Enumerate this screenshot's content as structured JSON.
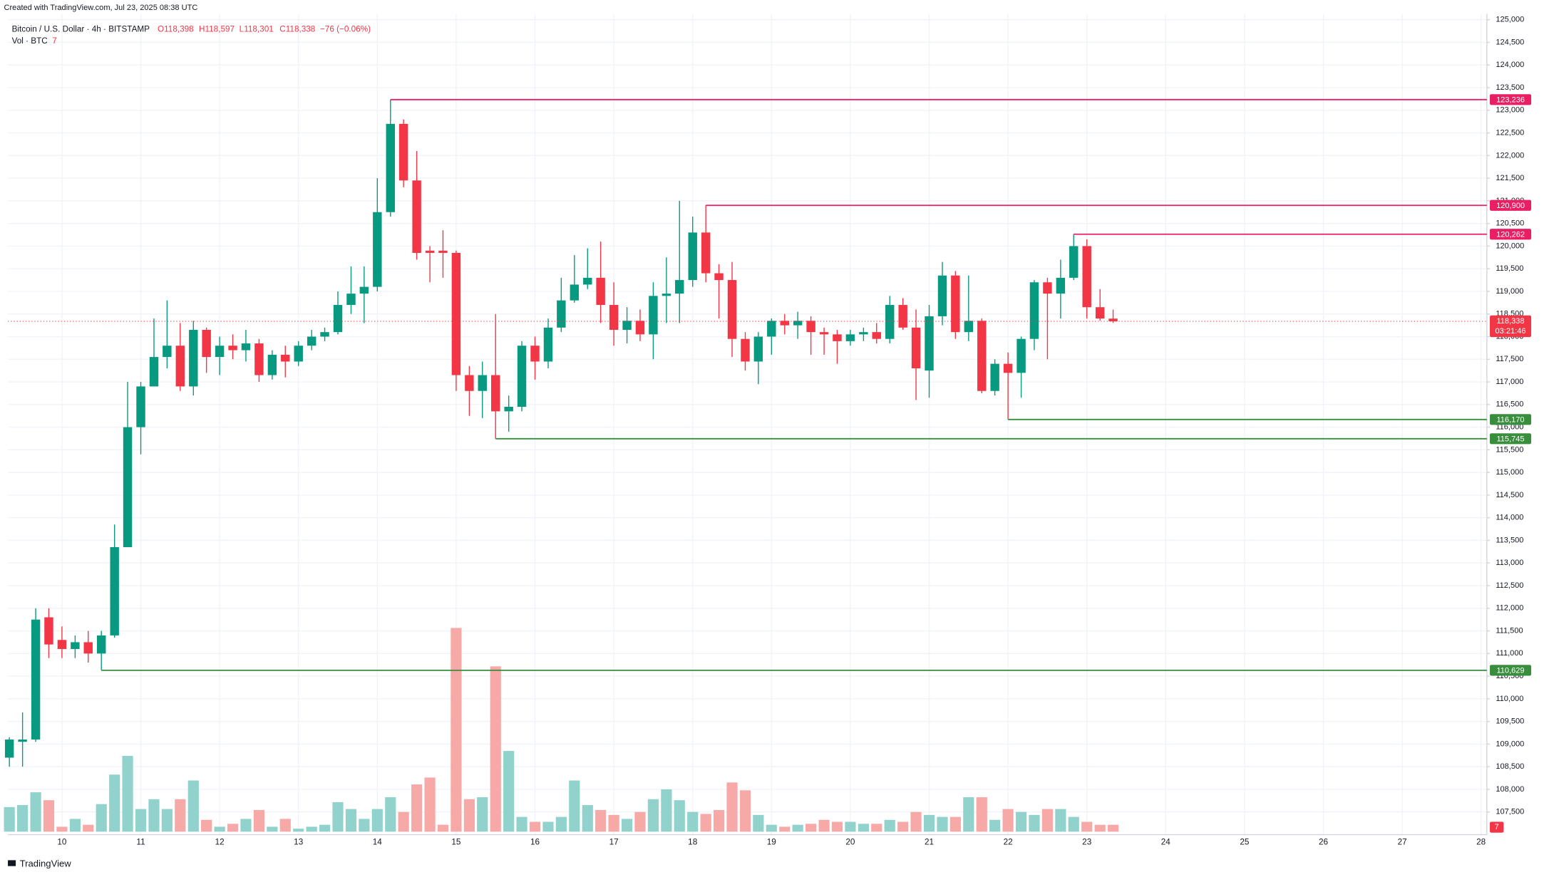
{
  "header": {
    "created": "Created with TradingView.com, Jul 23, 2025 08:38 UTC",
    "symbol": "Bitcoin / U.S. Dollar · 4h · BITSTAMP",
    "open": "O118,398",
    "high": "H118,597",
    "low": "L118,301",
    "close": "C118,338",
    "change": "−76 (−0.06%)",
    "volume_title": "Vol · BTC",
    "logo": "TradingView"
  },
  "chart_data": {
    "type": "candlestick",
    "title": "Bitcoin / U.S. Dollar · 4h · BITSTAMP",
    "x": [
      9.333,
      9.5,
      9.667,
      9.833,
      10,
      10.167,
      10.333,
      10.5,
      10.667,
      10.833,
      11,
      11.167,
      11.333,
      11.5,
      11.667,
      11.833,
      12,
      12.167,
      12.333,
      12.5,
      12.667,
      12.833,
      13,
      13.167,
      13.333,
      13.5,
      13.667,
      13.833,
      14,
      14.167,
      14.333,
      14.5,
      14.667,
      14.833,
      15,
      15.167,
      15.333,
      15.5,
      15.667,
      15.833,
      16,
      16.167,
      16.333,
      16.5,
      16.667,
      16.833,
      17,
      17.167,
      17.333,
      17.5,
      17.667,
      17.833,
      18,
      18.167,
      18.333,
      18.5,
      18.667,
      18.833,
      19,
      19.167,
      19.333,
      19.5,
      19.667,
      19.833,
      20,
      20.167,
      20.333,
      20.5,
      20.667,
      20.833,
      21,
      21.167,
      21.333,
      21.5,
      21.667,
      21.833,
      22,
      22.167,
      22.333,
      22.5,
      22.667,
      22.833,
      23,
      23.167,
      23.333
    ],
    "open": [
      108700,
      109050,
      109100,
      111800,
      111300,
      111100,
      111250,
      111000,
      111400,
      113350,
      116000,
      116900,
      117550,
      117800,
      116900,
      118150,
      117550,
      117800,
      117700,
      117850,
      117150,
      117600,
      117450,
      117800,
      118000,
      118100,
      118700,
      118950,
      119100,
      120750,
      122700,
      121450,
      119900,
      119900,
      119850,
      117150,
      116800,
      117150,
      116350,
      116450,
      117800,
      117450,
      118200,
      118800,
      119150,
      119300,
      118700,
      118150,
      118350,
      118050,
      118900,
      118950,
      119250,
      120300,
      119400,
      119250,
      117950,
      117450,
      118000,
      118350,
      118250,
      118350,
      118100,
      118050,
      117900,
      118050,
      118100,
      117950,
      118700,
      118200,
      117250,
      118450,
      119350,
      118100,
      118350,
      116800,
      117400,
      117200,
      117950,
      119200,
      118950,
      119300,
      120000,
      118650,
      118398
    ],
    "high": [
      109150,
      109700,
      112000,
      112000,
      111600,
      111400,
      111500,
      111500,
      113850,
      117000,
      117000,
      118400,
      118800,
      118300,
      118350,
      118200,
      118000,
      118050,
      118150,
      117950,
      117700,
      117800,
      117900,
      118150,
      118200,
      119000,
      119550,
      119550,
      121500,
      123236,
      122800,
      122100,
      120000,
      120350,
      119900,
      117350,
      117450,
      118500,
      116700,
      117900,
      118000,
      118400,
      119300,
      119800,
      119950,
      120100,
      119200,
      118650,
      118600,
      119200,
      119750,
      121000,
      120650,
      120900,
      119600,
      119650,
      118100,
      118100,
      118400,
      118500,
      118550,
      118450,
      118200,
      118150,
      118150,
      118200,
      118300,
      118900,
      118850,
      118600,
      118700,
      119650,
      119450,
      119350,
      118400,
      117500,
      117650,
      118000,
      119250,
      119300,
      119700,
      120262,
      120150,
      119050,
      118597
    ],
    "low": [
      108500,
      108500,
      109050,
      110900,
      110900,
      110900,
      110800,
      110629,
      111350,
      113350,
      115400,
      116900,
      117300,
      116800,
      116700,
      117200,
      117150,
      117500,
      117450,
      117000,
      117050,
      117100,
      117350,
      117700,
      117900,
      118050,
      118500,
      118300,
      119000,
      120650,
      121300,
      119700,
      119200,
      119300,
      116800,
      116250,
      116200,
      115745,
      115900,
      116350,
      117050,
      117300,
      118100,
      118750,
      119050,
      118300,
      117800,
      117850,
      117900,
      117500,
      118300,
      118300,
      119100,
      119200,
      118400,
      117550,
      117250,
      116950,
      117600,
      118050,
      117950,
      117600,
      117600,
      117400,
      117800,
      117900,
      117850,
      117850,
      118150,
      116600,
      116650,
      118250,
      117950,
      117900,
      116750,
      116700,
      116170,
      116650,
      117700,
      117500,
      118400,
      119250,
      118400,
      118350,
      118301
    ],
    "close": [
      109100,
      109100,
      111750,
      111200,
      111100,
      111250,
      111000,
      111400,
      113350,
      116000,
      116900,
      117550,
      117800,
      116900,
      118150,
      117550,
      117800,
      117700,
      117850,
      117150,
      117600,
      117450,
      117800,
      118000,
      118100,
      118700,
      118950,
      119100,
      120750,
      122700,
      121450,
      119850,
      119850,
      119850,
      117150,
      116800,
      117150,
      116350,
      116450,
      117800,
      117450,
      118200,
      118800,
      119150,
      119300,
      118700,
      118150,
      118350,
      118050,
      118900,
      118950,
      119250,
      120300,
      119400,
      119250,
      117950,
      117450,
      118000,
      118350,
      118250,
      118350,
      118100,
      118050,
      117900,
      118050,
      118100,
      117950,
      118700,
      118200,
      117300,
      118450,
      119350,
      118100,
      118350,
      116800,
      117400,
      117200,
      117950,
      119200,
      118950,
      119300,
      120000,
      118650,
      118400,
      118338
    ],
    "volume": [
      25,
      27,
      40,
      32,
      5,
      13,
      7,
      28,
      58,
      77,
      23,
      33,
      23,
      33,
      52,
      12,
      5,
      8,
      13,
      22,
      5,
      13,
      3,
      5,
      7,
      30,
      23,
      13,
      23,
      35,
      20,
      48,
      55,
      7,
      207,
      33,
      35,
      168,
      82,
      15,
      10,
      10,
      15,
      52,
      27,
      22,
      17,
      13,
      20,
      33,
      43,
      32,
      20,
      18,
      22,
      50,
      42,
      17,
      7,
      5,
      7,
      8,
      12,
      10,
      10,
      8,
      8,
      12,
      10,
      20,
      17,
      15,
      15,
      35,
      35,
      12,
      23,
      20,
      17,
      23,
      23,
      15,
      10,
      7,
      7
    ],
    "up_color": "#089981",
    "down_color": "#f23645",
    "volume_up_color": "#92d2cc",
    "volume_down_color": "#f7a9a7",
    "volume_ylim": [
      0,
      300
    ],
    "xlim": [
      9.314,
      28.074
    ],
    "xticks": [
      10,
      11,
      12,
      13,
      14,
      15,
      16,
      17,
      18,
      19,
      20,
      21,
      22,
      23,
      24,
      25,
      26,
      27,
      28
    ],
    "ylim": [
      107000,
      125130
    ],
    "yticks": [
      {
        "value": 107500,
        "label": "107,500"
      },
      {
        "value": 108000,
        "label": "108,000"
      },
      {
        "value": 108500,
        "label": "108,500"
      },
      {
        "value": 109000,
        "label": "109,000"
      },
      {
        "value": 109500,
        "label": "109,500"
      },
      {
        "value": 110000,
        "label": "110,000"
      },
      {
        "value": 110500,
        "label": "110,500"
      },
      {
        "value": 111000,
        "label": "111,000"
      },
      {
        "value": 111500,
        "label": "111,500"
      },
      {
        "value": 112000,
        "label": "112,000"
      },
      {
        "value": 112500,
        "label": "112,500"
      },
      {
        "value": 113000,
        "label": "113,000"
      },
      {
        "value": 113500,
        "label": "113,500"
      },
      {
        "value": 114000,
        "label": "114,000"
      },
      {
        "value": 114500,
        "label": "114,500"
      },
      {
        "value": 115000,
        "label": "115,000"
      },
      {
        "value": 115500,
        "label": "115,500"
      },
      {
        "value": 116000,
        "label": "116,000"
      },
      {
        "value": 116500,
        "label": "116,500"
      },
      {
        "value": 117000,
        "label": "117,000"
      },
      {
        "value": 117500,
        "label": "117,500"
      },
      {
        "value": 118000,
        "label": "118,000"
      },
      {
        "value": 118500,
        "label": "118,500"
      },
      {
        "value": 119000,
        "label": "119,000"
      },
      {
        "value": 119500,
        "label": "119,500"
      },
      {
        "value": 120000,
        "label": "120,000"
      },
      {
        "value": 120500,
        "label": "120,500"
      },
      {
        "value": 121000,
        "label": "121,000"
      },
      {
        "value": 121500,
        "label": "121,500"
      },
      {
        "value": 122000,
        "label": "122,000"
      },
      {
        "value": 122500,
        "label": "122,500"
      },
      {
        "value": 123000,
        "label": "123,000"
      },
      {
        "value": 123500,
        "label": "123,500"
      },
      {
        "value": 124000,
        "label": "124,000"
      },
      {
        "value": 124500,
        "label": "124,500"
      },
      {
        "value": 125000,
        "label": "125,000"
      }
    ],
    "grid": true,
    "levels": [
      {
        "value": 123236,
        "label": "123,236",
        "x": 14.167,
        "color": "#e91e63"
      },
      {
        "value": 120900,
        "label": "120,900",
        "x": 18.167,
        "color": "#e91e63"
      },
      {
        "value": 120262,
        "label": "120,262",
        "x": 22.833,
        "color": "#e91e63"
      },
      {
        "value": 116170,
        "label": "116,170",
        "x": 22,
        "color": "#388e3c"
      },
      {
        "value": 115745,
        "label": "115,745",
        "x": 15.5,
        "color": "#388e3c"
      },
      {
        "value": 110629,
        "label": "110,629",
        "x": 10.5,
        "color": "#388e3c"
      }
    ],
    "last_price": {
      "value": 118338,
      "label": "118,338",
      "countdown": "03:21:46",
      "color": "#f23645"
    }
  }
}
